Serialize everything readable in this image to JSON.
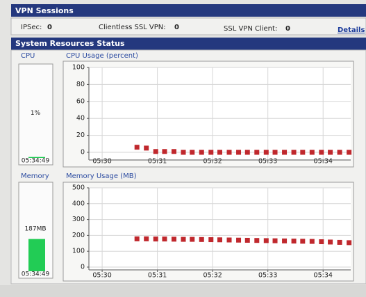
{
  "vpn_sessions": {
    "title": "VPN Sessions",
    "items": [
      {
        "label": "IPSec:",
        "value": 0
      },
      {
        "label": "Clientless SSL VPN:",
        "value": 0
      },
      {
        "label": "SSL VPN Client:",
        "value": 0
      }
    ],
    "link": "Details"
  },
  "system_resources": {
    "title": "System Resources Status",
    "panels": [
      {
        "label": "CPU",
        "value": 1,
        "value_label": "1%",
        "time": "05:34:49"
      },
      {
        "label": "Memory",
        "value": 187,
        "value_label": "187MB",
        "time": "05:34:49"
      }
    ]
  },
  "chart_data": [
    {
      "type": "line",
      "title": "CPU Usage (percent)",
      "x": [
        330.63,
        330.8,
        330.97,
        331.13,
        331.3,
        331.47,
        331.63,
        331.8,
        331.97,
        332.13,
        332.3,
        332.47,
        332.63,
        332.8,
        332.97,
        333.13,
        333.3,
        333.47,
        333.63,
        333.8,
        333.97,
        334.13,
        334.3,
        334.47
      ],
      "values": [
        6,
        5,
        1,
        1,
        1,
        0,
        0,
        0,
        0,
        0,
        0,
        0,
        0,
        0,
        0,
        0,
        0,
        0,
        0,
        0,
        0,
        0,
        0,
        0
      ],
      "color": "#c0282d",
      "xlim": [
        329.76,
        334.5
      ],
      "xticks": [
        {
          "value": 330,
          "label": "05:30"
        },
        {
          "value": 331,
          "label": "05:31"
        },
        {
          "value": 332,
          "label": "05:32"
        },
        {
          "value": 333,
          "label": "05:33"
        },
        {
          "value": 334,
          "label": "05:34"
        }
      ],
      "ylim": [
        0,
        100
      ],
      "yticks": [
        0,
        20,
        40,
        60,
        80,
        100
      ],
      "grid": true
    },
    {
      "type": "line",
      "title": "Memory Usage (MB)",
      "x": [
        330.63,
        330.8,
        330.97,
        331.13,
        331.3,
        331.47,
        331.63,
        331.8,
        331.97,
        332.13,
        332.3,
        332.47,
        332.63,
        332.8,
        332.97,
        333.13,
        333.3,
        333.47,
        333.63,
        333.8,
        333.97,
        334.13,
        334.3,
        334.47
      ],
      "values": [
        178,
        178,
        177,
        177,
        176,
        175,
        175,
        174,
        173,
        172,
        171,
        170,
        169,
        168,
        167,
        166,
        165,
        164,
        163,
        162,
        160,
        158,
        156,
        154
      ],
      "color": "#c0282d",
      "xlim": [
        329.76,
        334.5
      ],
      "xticks": [
        {
          "value": 330,
          "label": "05:30"
        },
        {
          "value": 331,
          "label": "05:31"
        },
        {
          "value": 332,
          "label": "05:32"
        },
        {
          "value": 333,
          "label": "05:33"
        },
        {
          "value": 334,
          "label": "05:34"
        }
      ],
      "ylim": [
        0,
        500
      ],
      "yticks": [
        0,
        100,
        200,
        300,
        400,
        500
      ],
      "grid": true
    }
  ]
}
